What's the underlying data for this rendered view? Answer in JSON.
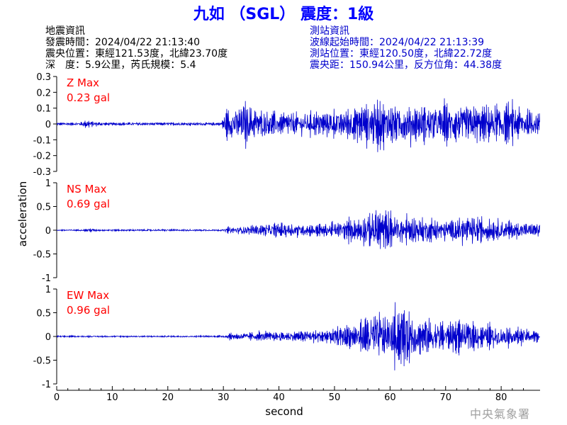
{
  "title": "九如 （SGL） 震度：1級",
  "quake_info": {
    "heading": "地震資訊",
    "time": "發震時間：2024/04/22 21:13:40",
    "epicenter": "震央位置：東經121.53度，北緯23.70度",
    "depth_mag": "深　度：5.9公里，芮氏規模：5.4"
  },
  "station_info": {
    "heading": "測站資訊",
    "wave_start": "波線起始時間：2024/04/22 21:13:39",
    "location": "測站位置：東經120.50度，北緯22.72度",
    "distance": "震央距：150.94公里，反方位角：44.38度"
  },
  "watermark": "中央氣象署",
  "chart_data": {
    "type": "line",
    "xlabel": "second",
    "ylabel": "acceleration",
    "xlim": [
      0,
      87
    ],
    "xticks": [
      "0",
      "10",
      "20",
      "30",
      "40",
      "50",
      "60",
      "70",
      "80"
    ],
    "trace_color": "#0000cc",
    "label_color": "#ff0000",
    "panels": [
      {
        "name": "Z Max",
        "max_label": "0.23 gal",
        "max": 0.23,
        "ylim": [
          -0.3,
          0.3
        ],
        "yticks": [
          "0.3",
          "0.2",
          "0.1",
          "0",
          "-0.1",
          "-0.2",
          "-0.3"
        ],
        "envelope": [
          [
            0,
            0.012
          ],
          [
            4,
            0.014
          ],
          [
            5.5,
            0.04
          ],
          [
            6.5,
            0.025
          ],
          [
            9,
            0.014
          ],
          [
            29.5,
            0.014
          ],
          [
            30.5,
            0.12
          ],
          [
            33,
            0.17
          ],
          [
            34,
            0.2
          ],
          [
            36,
            0.13
          ],
          [
            40,
            0.11
          ],
          [
            45,
            0.1
          ],
          [
            50,
            0.12
          ],
          [
            54,
            0.16
          ],
          [
            56,
            0.19
          ],
          [
            58,
            0.22
          ],
          [
            60,
            0.18
          ],
          [
            65,
            0.16
          ],
          [
            72,
            0.18
          ],
          [
            76,
            0.16
          ],
          [
            81,
            0.18
          ],
          [
            87,
            0.1
          ]
        ]
      },
      {
        "name": "NS Max",
        "max_label": "0.69 gal",
        "max": 0.69,
        "ylim": [
          -1,
          1
        ],
        "yticks": [
          "1",
          "0.5",
          "0",
          "-0.5",
          "-1"
        ],
        "envelope": [
          [
            0,
            0.02
          ],
          [
            5,
            0.025
          ],
          [
            6,
            0.07
          ],
          [
            7,
            0.03
          ],
          [
            30,
            0.025
          ],
          [
            31,
            0.1
          ],
          [
            35,
            0.15
          ],
          [
            40,
            0.22
          ],
          [
            45,
            0.18
          ],
          [
            50,
            0.22
          ],
          [
            54,
            0.35
          ],
          [
            56,
            0.5
          ],
          [
            58,
            0.69
          ],
          [
            60,
            0.5
          ],
          [
            65,
            0.4
          ],
          [
            70,
            0.35
          ],
          [
            75,
            0.4
          ],
          [
            80,
            0.3
          ],
          [
            87,
            0.2
          ]
        ]
      },
      {
        "name": "EW Max",
        "max_label": "0.96 gal",
        "max": 0.96,
        "ylim": [
          -1,
          1
        ],
        "yticks": [
          "1",
          "0.5",
          "0",
          "-0.5",
          "-1"
        ],
        "envelope": [
          [
            0,
            0.02
          ],
          [
            30,
            0.025
          ],
          [
            31,
            0.1
          ],
          [
            35,
            0.13
          ],
          [
            40,
            0.14
          ],
          [
            45,
            0.18
          ],
          [
            50,
            0.25
          ],
          [
            54,
            0.4
          ],
          [
            56,
            0.7
          ],
          [
            58,
            0.75
          ],
          [
            60,
            0.55
          ],
          [
            62,
            0.96
          ],
          [
            65,
            0.6
          ],
          [
            70,
            0.45
          ],
          [
            75,
            0.4
          ],
          [
            80,
            0.3
          ],
          [
            87,
            0.2
          ]
        ]
      }
    ]
  }
}
